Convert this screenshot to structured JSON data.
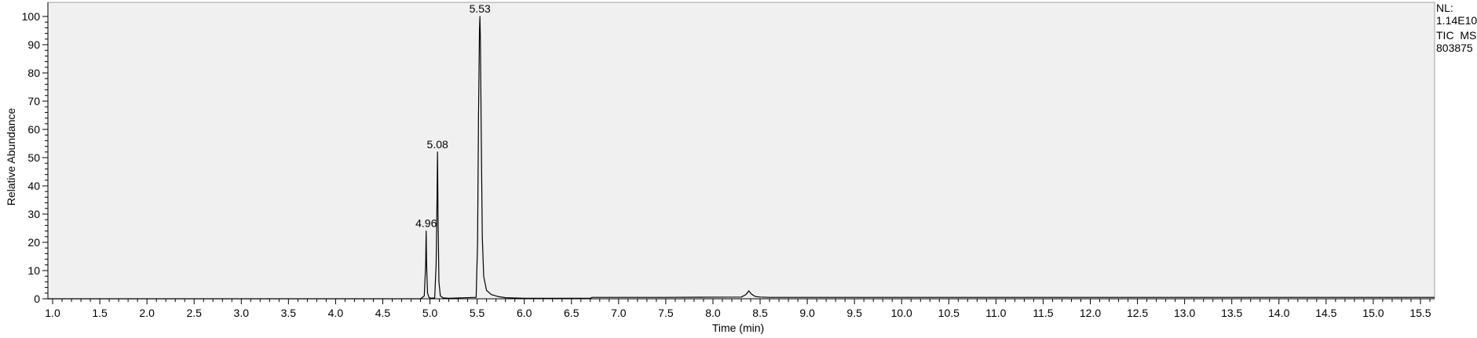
{
  "info_panel": {
    "nl_label": "NL:",
    "nl_value": "1.14E10",
    "scan_type": "TIC  MS",
    "sample_id": "803875"
  },
  "chart_data": {
    "type": "line",
    "title": "",
    "xlabel": "Time (min)",
    "ylabel": "Relative Abundance",
    "xlim": [
      0.95,
      15.65
    ],
    "ylim": [
      0,
      100
    ],
    "x_ticks": [
      1.0,
      1.5,
      2.0,
      2.5,
      3.0,
      3.5,
      4.0,
      4.5,
      5.0,
      5.5,
      6.0,
      6.5,
      7.0,
      7.5,
      8.0,
      8.5,
      9.0,
      9.5,
      10.0,
      10.5,
      11.0,
      11.5,
      12.0,
      12.5,
      13.0,
      13.5,
      14.0,
      14.5,
      15.0,
      15.5
    ],
    "x_tick_labels": [
      "1.0",
      "1.5",
      "2.0",
      "2.5",
      "3.0",
      "3.5",
      "4.0",
      "4.5",
      "5.0",
      "5.5",
      "6.0",
      "6.5",
      "7.0",
      "7.5",
      "8.0",
      "8.5",
      "9.0",
      "9.5",
      "10.0",
      "10.5",
      "11.0",
      "11.5",
      "12.0",
      "12.5",
      "13.0",
      "13.5",
      "14.0",
      "14.5",
      "15.0",
      "15.5"
    ],
    "y_ticks": [
      0,
      10,
      20,
      30,
      40,
      50,
      60,
      70,
      80,
      90,
      100
    ],
    "y_tick_labels": [
      "0",
      "10",
      "20",
      "30",
      "40",
      "50",
      "60",
      "70",
      "80",
      "90",
      "100"
    ],
    "grid": false,
    "plot_background": "#f0f0f0",
    "line_color": "#000000",
    "series": [
      {
        "x": [
          0.95,
          4.9,
          4.94,
          4.955,
          4.96,
          4.965,
          4.975,
          4.99,
          5.01,
          5.05,
          5.065,
          5.075,
          5.08,
          5.085,
          5.095,
          5.11,
          5.14,
          5.2,
          5.49,
          5.505,
          5.515,
          5.525,
          5.53,
          5.535,
          5.545,
          5.555,
          5.57,
          5.6,
          5.65,
          5.72,
          5.8,
          6.0,
          6.5,
          6.7,
          6.72,
          7.5,
          8.3,
          8.35,
          8.38,
          8.41,
          8.45,
          8.5,
          8.6,
          9.0,
          12.0,
          15.65
        ],
        "y": [
          0.0,
          0.0,
          1.0,
          12.0,
          24.0,
          12.0,
          2.0,
          0.5,
          0.2,
          0.3,
          12.0,
          36.0,
          52.0,
          30.0,
          6.0,
          1.0,
          0.3,
          0.2,
          0.5,
          20.0,
          65.0,
          95.0,
          100.0,
          92.0,
          55.0,
          22.0,
          8.0,
          3.0,
          1.5,
          0.8,
          0.4,
          0.2,
          0.2,
          0.2,
          0.5,
          0.5,
          0.6,
          1.5,
          2.8,
          1.6,
          0.8,
          0.6,
          0.5,
          0.5,
          0.5,
          0.5
        ]
      }
    ],
    "annotations": [
      {
        "x": 4.96,
        "y": 24.0,
        "text": "4.96"
      },
      {
        "x": 5.08,
        "y": 52.0,
        "text": "5.08"
      },
      {
        "x": 5.53,
        "y": 100.0,
        "text": "5.53"
      }
    ]
  }
}
